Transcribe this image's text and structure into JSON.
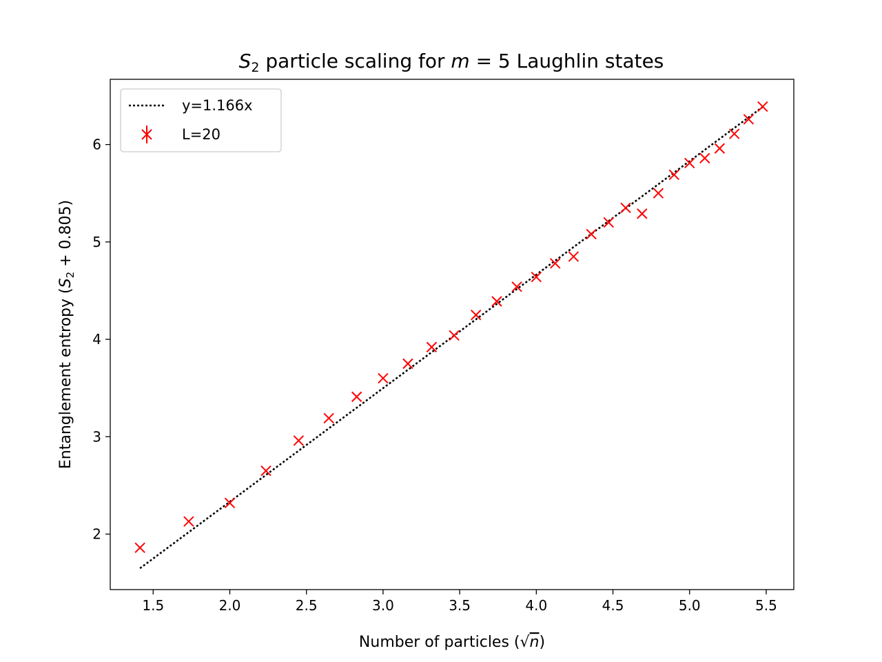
{
  "chart_data": {
    "type": "scatter",
    "title": {
      "prefix": "",
      "main_var": "S",
      "main_sub": "2",
      "mid": " particle scaling for ",
      "var": "m",
      "suffix": " = 5 Laughlin states"
    },
    "xlabel": {
      "text": "Number of particles (√",
      "var": "n",
      "close": ")"
    },
    "ylabel": {
      "prefix": "Entanglement entropy (",
      "var": "S",
      "sub": "2",
      "suffix": " + 0.805)"
    },
    "xlim": [
      1.22,
      5.68
    ],
    "ylim": [
      1.43,
      6.67
    ],
    "xticks": [
      1.5,
      2.0,
      2.5,
      3.0,
      3.5,
      4.0,
      4.5,
      5.0,
      5.5
    ],
    "xtick_labels": [
      "1.5",
      "2.0",
      "2.5",
      "3.0",
      "3.5",
      "4.0",
      "4.5",
      "5.0",
      "5.5"
    ],
    "yticks": [
      2,
      3,
      4,
      5,
      6
    ],
    "ytick_labels": [
      "2",
      "3",
      "4",
      "5",
      "6"
    ],
    "grid": false,
    "legend_position": "upper-left",
    "fit_line": {
      "name": "y=1.166x",
      "slope": 1.166,
      "x_range": [
        1.414,
        5.477
      ],
      "color": "#000000",
      "style": "dotted"
    },
    "series": [
      {
        "name": "L=20",
        "color": "#ff0000",
        "marker": "x",
        "x": [
          1.414,
          1.732,
          2.0,
          2.236,
          2.449,
          2.646,
          2.828,
          3.0,
          3.162,
          3.317,
          3.464,
          3.606,
          3.742,
          3.873,
          4.0,
          4.123,
          4.243,
          4.359,
          4.472,
          4.583,
          4.69,
          4.796,
          4.899,
          5.0,
          5.099,
          5.196,
          5.292,
          5.385,
          5.477
        ],
        "y": [
          1.86,
          2.13,
          2.32,
          2.65,
          2.96,
          3.19,
          3.41,
          3.6,
          3.75,
          3.92,
          4.04,
          4.25,
          4.39,
          4.54,
          4.64,
          4.78,
          4.85,
          5.08,
          5.2,
          5.35,
          5.29,
          5.5,
          5.69,
          5.81,
          5.86,
          5.96,
          6.11,
          6.26,
          6.39
        ]
      }
    ]
  }
}
